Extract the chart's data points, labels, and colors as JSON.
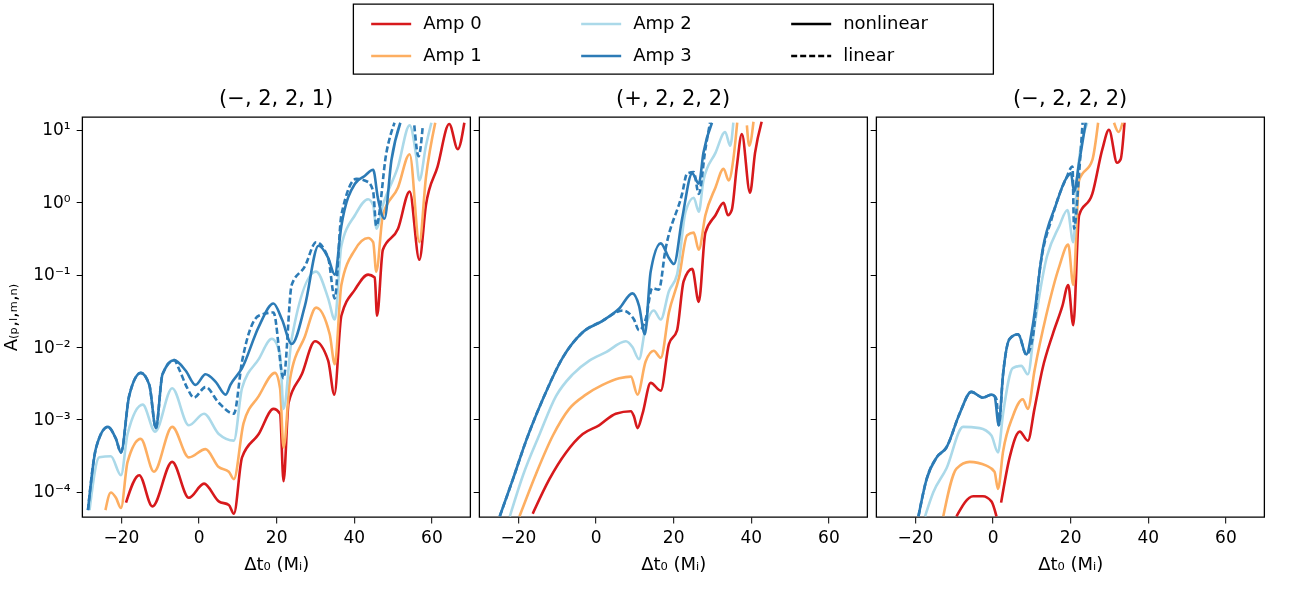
{
  "chart_data": [
    {
      "type": "line",
      "title": "(−, 2, 2, 1)",
      "xlabel": "Δt₀ (Mᵢ)",
      "ylabel": "A₍ₚ,ₗ,ₘ,ₙ₎",
      "log": "y",
      "grid": false,
      "legend": "top",
      "xlim": [
        -30,
        70
      ],
      "xticks": [
        -20,
        0,
        20,
        40,
        60
      ],
      "ylim": [
        4.5e-05,
        15
      ],
      "yticks": [
        {
          "value": 0.0001,
          "label": "10⁻⁴"
        },
        {
          "value": 0.001,
          "label": "10⁻³"
        },
        {
          "value": 0.01,
          "label": "10⁻²"
        },
        {
          "value": 0.1,
          "label": "10⁻¹"
        },
        {
          "value": 1,
          "label": "10⁰"
        },
        {
          "value": 10,
          "label": "10¹"
        }
      ],
      "series": [
        {
          "name": "Amp 0",
          "color": "#d7191c",
          "line_style": "solid",
          "x": [
            -18.7,
            -15.3,
            -11.9,
            -6.8,
            -2.5,
            1.4,
            5.2,
            7.8,
            9.1,
            11.2,
            15.5,
            19.3,
            21,
            21.9,
            23.2,
            26.6,
            30,
            33.4,
            35,
            36.8,
            40.3,
            43.7,
            45.4,
            46,
            47.5,
            51.4,
            54.4,
            56.9,
            58.6,
            61.6,
            64.6,
            66.8,
            68.5
          ],
          "values": [
            7.1e-05,
            0.00017,
            6.3e-05,
            0.00026,
            8.3e-05,
            0.00013,
            7.4e-05,
            6.6e-05,
            5e-05,
            0.0003,
            0.00063,
            0.0014,
            0.0012,
            0.00014,
            0.0017,
            0.0042,
            0.012,
            0.0065,
            0.0022,
            0.027,
            0.062,
            0.1,
            0.091,
            0.027,
            0.22,
            0.43,
            1.4,
            0.16,
            0.91,
            3.1,
            12,
            5.4,
            12.5
          ]
        },
        {
          "name": "Amp 1",
          "color": "#fdae61",
          "line_style": "solid",
          "x": [
            -24,
            -22.6,
            -21.3,
            -20,
            -18.3,
            -14.9,
            -11.5,
            -6.8,
            -2.5,
            1.8,
            5.2,
            7.8,
            9.1,
            11.6,
            15.5,
            19.7,
            21,
            21.9,
            23.6,
            27.4,
            30.3,
            33.8,
            35.1,
            36.8,
            40.3,
            43.7,
            45,
            45.8,
            47.5,
            51.4,
            54.4,
            56.9,
            58.6,
            61
          ],
          "values": [
            5.6e-05,
            9.8e-05,
            8.3e-05,
            6e-05,
            0.00026,
            0.00054,
            0.00019,
            0.00079,
            0.0003,
            0.00039,
            0.00022,
            0.00019,
            0.00015,
            0.00089,
            0.0021,
            0.0044,
            0.0027,
            0.00041,
            0.0037,
            0.014,
            0.035,
            0.015,
            0.0058,
            0.072,
            0.22,
            0.32,
            0.28,
            0.11,
            0.66,
            1.6,
            4.6,
            0.28,
            2.2,
            12.5
          ]
        },
        {
          "name": "Amp 2",
          "color": "#abd9e9",
          "line_style": "solid",
          "x": [
            -28.1,
            -25.6,
            -22.6,
            -20,
            -18.3,
            -14.4,
            -11.2,
            -6.8,
            -2.5,
            1.4,
            5.2,
            9.1,
            11.2,
            15.5,
            18.9,
            21,
            21.9,
            24,
            30.3,
            33.4,
            35.1,
            36.8,
            40.3,
            43.7,
            45,
            45.8,
            47.5,
            51.4,
            54.4,
            56.1,
            56.9,
            58.6,
            60
          ],
          "values": [
            5.6e-05,
            0.0003,
            0.00031,
            0.00017,
            0.00063,
            0.0016,
            0.00068,
            0.0027,
            0.00083,
            0.0012,
            0.00063,
            0.00051,
            0.0027,
            0.0068,
            0.013,
            0.0079,
            0.0014,
            0.013,
            0.11,
            0.047,
            0.024,
            0.25,
            0.66,
            1.1,
            0.91,
            0.43,
            0.91,
            3.1,
            11.5,
            4.3,
            2.0,
            6.0,
            12.5
          ]
        },
        {
          "name": "Amp 3",
          "color": "#2c7bb6",
          "line_style": "solid",
          "x": [
            -28.5,
            -26.4,
            -23.4,
            -21.3,
            -20,
            -17.9,
            -14.9,
            -12.7,
            -11,
            -9.3,
            -6.3,
            -3.3,
            -0.8,
            1.8,
            4.4,
            7,
            8.2,
            11.2,
            15.5,
            19.3,
            21.5,
            24,
            27.4,
            30.9,
            33.4,
            35.1,
            36.8,
            40.3,
            42.8,
            45,
            46.2,
            47.9,
            49.7,
            52
          ],
          "values": [
            5.6e-05,
            0.00041,
            0.00079,
            0.00054,
            0.00035,
            0.0021,
            0.0044,
            0.003,
            0.00076,
            0.0042,
            0.0066,
            0.0047,
            0.003,
            0.0042,
            0.0033,
            0.0022,
            0.003,
            0.0051,
            0.019,
            0.04,
            0.024,
            0.011,
            0.037,
            0.25,
            0.17,
            0.1,
            0.47,
            1.8,
            2.3,
            2.8,
            1.15,
            0.59,
            3.8,
            12.5
          ]
        },
        {
          "color": "#2c7bb6",
          "line_style": "dashed",
          "x": [
            -28.5,
            -26.4,
            -23.4,
            -21.3,
            -20,
            -17.9,
            -14.9,
            -12.7,
            -11,
            -9.3,
            -6.3,
            -5,
            -2.9,
            -1.2,
            1.8,
            5.2,
            9.1,
            11.2,
            15.5,
            19.3,
            21.9,
            24,
            27.4,
            30.3,
            33.4,
            35.1,
            36.8,
            40.7,
            43.7,
            45,
            45.8,
            48.4,
            50.5,
            53,
            55.6,
            56.7,
            57.8
          ],
          "values": [
            5.6e-05,
            0.00041,
            0.00079,
            0.00054,
            0.00035,
            0.0021,
            0.0044,
            0.003,
            0.00076,
            0.0042,
            0.0066,
            0.0049,
            0.0027,
            0.002,
            0.0028,
            0.0017,
            0.0012,
            0.0063,
            0.027,
            0.03,
            0.0037,
            0.072,
            0.13,
            0.28,
            0.17,
            0.047,
            0.66,
            2.1,
            1.9,
            1.4,
            0.47,
            4.8,
            12.5,
            null,
            11.5,
            4.3,
            11.5
          ]
        },
        {
          "name": "nonlinear",
          "color": "#000000",
          "line_style": "solid"
        },
        {
          "name": "linear",
          "color": "#000000",
          "line_style": "dashed"
        }
      ]
    },
    {
      "type": "line",
      "title": "(+, 2, 2, 2)",
      "xlabel": "Δt₀ (Mᵢ)",
      "log": "y",
      "grid": false,
      "tick_labels": "x",
      "xlim": [
        -30,
        70
      ],
      "xticks": [
        -20,
        0,
        20,
        40,
        60
      ],
      "ylim": [
        4.5e-05,
        15
      ],
      "yticks": [
        0.0001,
        0.001,
        0.01,
        0.1,
        1,
        10
      ],
      "series": [
        {
          "color": "#d7191c",
          "line_style": "solid",
          "x": [
            -16.2,
            -11.9,
            -7.6,
            -3.3,
            0.9,
            5.2,
            9.1,
            9.9,
            10.8,
            12.1,
            14.2,
            16.8,
            18.9,
            21,
            22.7,
            24.9,
            26.6,
            28.3,
            30.9,
            33,
            34.1,
            35.1,
            36.4,
            37.7,
            39.8,
            41.1,
            42.8
          ],
          "values": [
            5e-05,
            0.00015,
            0.00035,
            0.00063,
            0.00083,
            0.0012,
            0.0013,
            0.0011,
            0.00076,
            0.0012,
            0.0032,
            0.0025,
            0.011,
            0.017,
            0.081,
            0.12,
            0.042,
            0.38,
            0.66,
            0.98,
            0.66,
            0.78,
            3.1,
            8.7,
            1.35,
            4.8,
            12.9
          ]
        },
        {
          "color": "#fdae61",
          "line_style": "solid",
          "x": [
            -19.6,
            -15.3,
            -11,
            -6.8,
            -2.5,
            1.8,
            6.1,
            9.1,
            10.8,
            12.9,
            15,
            16.8,
            18.9,
            21.5,
            23.6,
            25.3,
            26.6,
            28.3,
            30.9,
            33,
            34.3,
            35.6,
            36.5,
            37.7,
            39,
            39.6,
            40.7
          ],
          "values": [
            4.6e-05,
            0.00018,
            0.0006,
            0.0014,
            0.0022,
            0.003,
            0.0037,
            0.0039,
            0.0022,
            0.0063,
            0.0089,
            0.0071,
            0.03,
            0.091,
            0.35,
            0.38,
            0.22,
            0.66,
            1.6,
            2.9,
            2.0,
            4.3,
            12.5,
            null,
            11.5,
            6.0,
            12.9
          ]
        },
        {
          "color": "#abd9e9",
          "line_style": "solid",
          "x": [
            -22.1,
            -18.7,
            -14.4,
            -10.2,
            -5.9,
            -1.6,
            2.7,
            7.8,
            9.5,
            11.2,
            12.9,
            15,
            16.8,
            18.9,
            21,
            23.2,
            25.3,
            26.6,
            27.8,
            30.9,
            33.4,
            34.7,
            35.5
          ],
          "values": [
            4.6e-05,
            0.00017,
            0.00063,
            0.0021,
            0.0042,
            0.0065,
            0.0085,
            0.012,
            0.01,
            0.0068,
            0.019,
            0.032,
            0.024,
            0.059,
            0.1,
            0.74,
            1.15,
            0.74,
            2.0,
            4.8,
            9.3,
            6.0,
            12.5
          ]
        },
        {
          "color": "#2c7bb6",
          "line_style": "solid",
          "x": [
            -24.7,
            -21.3,
            -17.9,
            -13.6,
            -8.5,
            -3.3,
            1.8,
            6.1,
            9.5,
            11.2,
            12.7,
            14.2,
            16.8,
            18.9,
            20.2,
            22.3,
            24.9,
            26.6,
            27.8,
            30
          ],
          "values": [
            4.6e-05,
            0.00015,
            0.00051,
            0.0019,
            0.0071,
            0.016,
            0.023,
            0.034,
            0.055,
            0.037,
            0.015,
            0.11,
            0.27,
            0.17,
            0.14,
            0.59,
            2.5,
            1.8,
            4.8,
            12.5
          ]
        },
        {
          "color": "#2c7bb6",
          "line_style": "dashed",
          "x": [
            -24.7,
            -21.3,
            -17.9,
            -13.6,
            -8.5,
            -3.3,
            1.8,
            7,
            9.9,
            11.2,
            12.9,
            14.6,
            16.3,
            18,
            22.3,
            23.6,
            25.3,
            26.6,
            28.3,
            29.5
          ],
          "values": [
            4.6e-05,
            0.00015,
            0.00051,
            0.0019,
            0.0071,
            0.016,
            0.023,
            0.032,
            0.024,
            0.017,
            0.024,
            0.065,
            0.062,
            0.22,
            1.3,
            2.5,
            2.6,
            1.3,
            5.4,
            12.5
          ]
        }
      ]
    },
    {
      "type": "line",
      "title": "(−, 2, 2, 2)",
      "xlabel": "Δt₀ (Mᵢ)",
      "log": "y",
      "grid": false,
      "tick_labels": "x",
      "xlim": [
        -30,
        70
      ],
      "xticks": [
        -20,
        0,
        20,
        40,
        60
      ],
      "ylim": [
        4.5e-05,
        15
      ],
      "yticks": [
        0.0001,
        0.001,
        0.01,
        0.1,
        1,
        10
      ],
      "series": [
        {
          "color": "#d7191c",
          "line_style": "solid",
          "x": [
            -9.3,
            -5,
            -2.5,
            -0.3,
            1,
            1.6,
            2.2,
            4.4,
            7,
            9.1,
            10.8,
            12.9,
            15.5,
            18,
            19.5,
            20.8,
            22.3,
            25.7,
            28.3,
            30,
            32.1,
            33,
            34
          ],
          "values": [
            4.6e-05,
            8.7e-05,
            8.7e-05,
            7.4e-05,
            4.6e-05,
            null,
            7.1e-05,
            0.0003,
            0.00068,
            0.00051,
            0.0014,
            0.0051,
            0.015,
            0.037,
            0.072,
            0.02,
            0.66,
            1.3,
            5.4,
            10,
            3.5,
            3.9,
            12.5
          ]
        },
        {
          "color": "#fdae61",
          "line_style": "solid",
          "x": [
            -12.7,
            -9.3,
            -5.9,
            -1.6,
            0.5,
            1.4,
            2.7,
            5.2,
            7.8,
            9.1,
            10.8,
            13.8,
            17.2,
            19.5,
            20.8,
            22.3,
            25.7,
            27.2,
            29,
            31.3,
            32.5,
            33.5
          ],
          "values": [
            4.6e-05,
            0.00021,
            0.00026,
            0.00023,
            0.00019,
            0.00011,
            0.00036,
            0.0011,
            0.0019,
            0.0014,
            0.0047,
            0.027,
            0.13,
            0.26,
            0.072,
            2.0,
            3.8,
            12.5,
            null,
            12.5,
            9.3,
            12.5
          ]
        },
        {
          "color": "#abd9e9",
          "line_style": "solid",
          "x": [
            -17.4,
            -15.3,
            -11.9,
            -7.6,
            -3.3,
            -0.3,
            1.4,
            2.7,
            5.2,
            7.4,
            9.1,
            10.8,
            13.8,
            17.2,
            19.3,
            20.8,
            21.9,
            24.4
          ],
          "values": [
            4.6e-05,
            9.8e-05,
            0.00021,
            0.00079,
            0.00076,
            0.0006,
            0.00035,
            0.0012,
            0.0051,
            0.0055,
            0.0042,
            0.019,
            0.16,
            0.47,
            0.78,
            0.28,
            2.5,
            12.5
          ]
        },
        {
          "color": "#2c7bb6",
          "line_style": "solid",
          "x": [
            -19.1,
            -17,
            -14.4,
            -11.9,
            -8.5,
            -5.5,
            -2.5,
            -0.3,
            0.5,
            1.6,
            2.7,
            4.4,
            6.6,
            8.7,
            10.3,
            12.9,
            16.3,
            18.9,
            20.2,
            21,
            22.3,
            24
          ],
          "values": [
            4.6e-05,
            0.00015,
            0.0003,
            0.00041,
            0.0012,
            0.0024,
            0.002,
            0.0022,
            0.0021,
            0.00083,
            0.0042,
            0.013,
            0.015,
            0.0079,
            0.019,
            0.22,
            0.91,
            2.1,
            2.5,
            1.4,
            3.5,
            12.5
          ]
        },
        {
          "color": "#2c7bb6",
          "line_style": "dashed",
          "x": [
            -19.1,
            -17,
            -14.4,
            -11.9,
            -8.5,
            -5.5,
            -2.5,
            -0.3,
            0.5,
            1,
            1.6,
            2.7,
            4.4,
            6.6,
            8.7,
            10.3,
            12,
            15.5,
            18.9,
            20.6,
            21,
            22.3,
            23.2
          ],
          "values": [
            4.6e-05,
            0.00015,
            0.0003,
            0.00041,
            0.0012,
            0.0024,
            0.002,
            0.0022,
            0.0021,
            0.0019,
            0.00083,
            0.0042,
            0.013,
            0.015,
            0.0079,
            0.013,
            0.1,
            0.66,
            2.1,
            3.1,
            0.43,
            2.5,
            12.5
          ]
        }
      ]
    }
  ]
}
